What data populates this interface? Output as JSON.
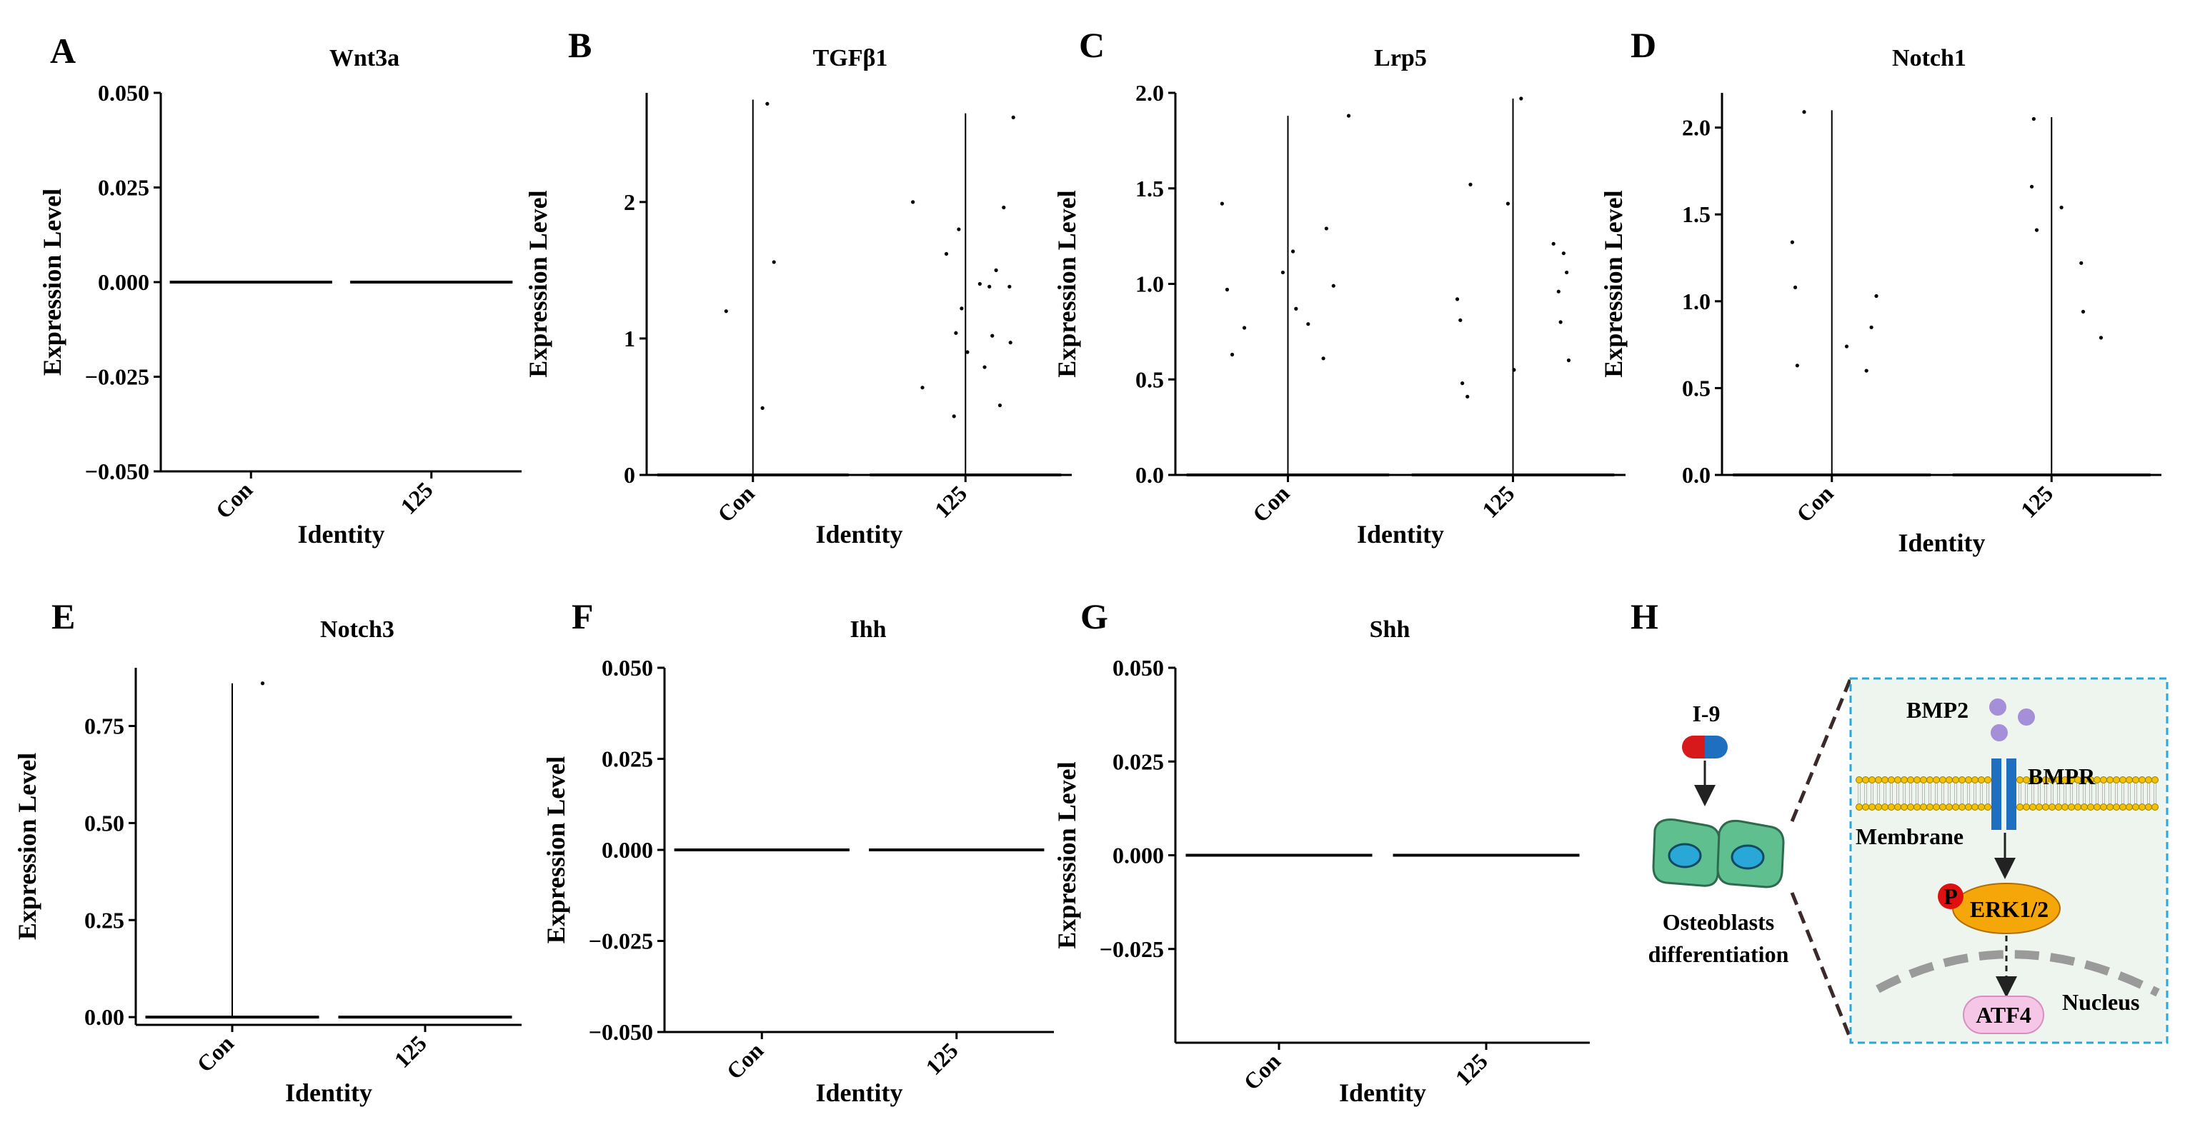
{
  "figure": {
    "panels": [
      {
        "letter": "A",
        "gene": "Wnt3a"
      },
      {
        "letter": "B",
        "gene": "TGFβ1"
      },
      {
        "letter": "C",
        "gene": "Lrp5"
      },
      {
        "letter": "D",
        "gene": "Notch1"
      },
      {
        "letter": "E",
        "gene": "Notch3"
      },
      {
        "letter": "F",
        "gene": "Ihh"
      },
      {
        "letter": "G",
        "gene": "Shh"
      },
      {
        "letter": "H",
        "gene": ""
      }
    ]
  },
  "chart_data": [
    {
      "panel": "A",
      "type": "violin",
      "title": "Wnt3a",
      "xlabel": "Identity",
      "ylabel": "Expression Level",
      "categories": [
        "Con",
        "125"
      ],
      "ylim": [
        -0.05,
        0.05
      ],
      "yticks": [
        -0.05,
        -0.025,
        0,
        0.025,
        0.05
      ],
      "ytick_labels": [
        "−0.050",
        "−0.025",
        "0.000",
        "0.025",
        "0.050"
      ],
      "series": [
        {
          "name": "Con",
          "violin_max": 0,
          "points": []
        },
        {
          "name": "125",
          "violin_max": 0,
          "points": []
        }
      ]
    },
    {
      "panel": "B",
      "type": "violin",
      "title": "TGFβ1",
      "xlabel": "Identity",
      "ylabel": "Expression Level",
      "categories": [
        "Con",
        "125"
      ],
      "ylim": [
        0,
        2.8
      ],
      "yticks": [
        0,
        1,
        2
      ],
      "ytick_labels": [
        "0",
        "1",
        "2"
      ],
      "series": [
        {
          "name": "Con",
          "violin_max": 2.75,
          "points": [
            [
              -0.28,
              1.2
            ],
            [
              0.1,
              0.49
            ],
            [
              0.22,
              1.56
            ],
            [
              0.15,
              2.72
            ]
          ]
        },
        {
          "name": "125",
          "violin_max": 2.65,
          "points": [
            [
              -0.55,
              2.0
            ],
            [
              -0.45,
              0.64
            ],
            [
              -0.2,
              1.62
            ],
            [
              -0.12,
              0.43
            ],
            [
              -0.1,
              1.04
            ],
            [
              -0.07,
              1.8
            ],
            [
              -0.04,
              1.22
            ],
            [
              0.02,
              0.9
            ],
            [
              0.15,
              1.4
            ],
            [
              0.2,
              0.79
            ],
            [
              0.25,
              1.38
            ],
            [
              0.28,
              1.02
            ],
            [
              0.32,
              1.5
            ],
            [
              0.36,
              0.51
            ],
            [
              0.4,
              1.96
            ],
            [
              0.46,
              1.38
            ],
            [
              0.47,
              0.97
            ],
            [
              0.5,
              2.62
            ]
          ]
        }
      ]
    },
    {
      "panel": "C",
      "type": "violin",
      "title": "Lrp5",
      "xlabel": "Identity",
      "ylabel": "Expression Level",
      "categories": [
        "Con",
        "125"
      ],
      "ylim": [
        0,
        2.0
      ],
      "yticks": [
        0,
        0.5,
        1,
        1.5,
        2
      ],
      "ytick_labels": [
        "0.0",
        "0.5",
        "1.0",
        "1.5",
        "2.0"
      ],
      "series": [
        {
          "name": "Con",
          "violin_max": 1.88,
          "points": [
            [
              -0.65,
              1.42
            ],
            [
              -0.6,
              0.97
            ],
            [
              -0.55,
              0.63
            ],
            [
              -0.43,
              0.77
            ],
            [
              -0.05,
              1.06
            ],
            [
              0.05,
              1.17
            ],
            [
              0.08,
              0.87
            ],
            [
              0.2,
              0.79
            ],
            [
              0.35,
              0.61
            ],
            [
              0.38,
              1.29
            ],
            [
              0.45,
              0.99
            ],
            [
              0.6,
              1.88
            ]
          ]
        },
        {
          "name": "125",
          "violin_max": 1.97,
          "points": [
            [
              -0.55,
              0.92
            ],
            [
              -0.52,
              0.81
            ],
            [
              -0.5,
              0.48
            ],
            [
              -0.45,
              0.41
            ],
            [
              -0.42,
              1.52
            ],
            [
              -0.05,
              1.42
            ],
            [
              0.01,
              0.55
            ],
            [
              0.08,
              1.97
            ],
            [
              0.4,
              1.21
            ],
            [
              0.45,
              0.96
            ],
            [
              0.47,
              0.8
            ],
            [
              0.5,
              1.16
            ],
            [
              0.53,
              1.06
            ],
            [
              0.55,
              0.6
            ]
          ]
        }
      ]
    },
    {
      "panel": "D",
      "type": "violin",
      "title": "Notch1",
      "xlabel": "Identity",
      "ylabel": "Expression Level",
      "categories": [
        "Con",
        "125"
      ],
      "ylim": [
        0,
        2.2
      ],
      "yticks": [
        0,
        0.5,
        1,
        1.5,
        2
      ],
      "ytick_labels": [
        "0.0",
        "0.5",
        "1.0",
        "1.5",
        "2.0"
      ],
      "series": [
        {
          "name": "Con",
          "violin_max": 2.1,
          "points": [
            [
              -0.4,
              1.34
            ],
            [
              -0.37,
              1.08
            ],
            [
              -0.35,
              0.63
            ],
            [
              -0.28,
              2.09
            ],
            [
              0.15,
              0.74
            ],
            [
              0.35,
              0.6
            ],
            [
              0.4,
              0.85
            ],
            [
              0.45,
              1.03
            ]
          ]
        },
        {
          "name": "125",
          "violin_max": 2.06,
          "points": [
            [
              -0.2,
              1.66
            ],
            [
              -0.15,
              1.41
            ],
            [
              -0.18,
              2.05
            ],
            [
              0.1,
              1.54
            ],
            [
              0.3,
              1.22
            ],
            [
              0.32,
              0.94
            ],
            [
              0.5,
              0.79
            ]
          ]
        }
      ]
    },
    {
      "panel": "E",
      "type": "violin",
      "title": "Notch3",
      "xlabel": "Identity",
      "ylabel": "Expression Level",
      "categories": [
        "Con",
        "125"
      ],
      "ylim": [
        -0.02,
        0.9
      ],
      "yticks": [
        0,
        0.25,
        0.5,
        0.75
      ],
      "ytick_labels": [
        "0.00",
        "0.25",
        "0.50",
        "0.75"
      ],
      "series": [
        {
          "name": "Con",
          "violin_max": 0.86,
          "points": [
            [
              0.35,
              0.86
            ]
          ]
        },
        {
          "name": "125",
          "violin_max": 0,
          "points": []
        }
      ]
    },
    {
      "panel": "F",
      "type": "violin",
      "title": "Ihh",
      "xlabel": "Identity",
      "ylabel": "Expression Level",
      "categories": [
        "Con",
        "125"
      ],
      "ylim": [
        -0.05,
        0.05
      ],
      "yticks": [
        -0.05,
        -0.025,
        0,
        0.025,
        0.05
      ],
      "ytick_labels": [
        "−0.050",
        "−0.025",
        "0.000",
        "0.025",
        "0.050"
      ],
      "series": [
        {
          "name": "Con",
          "violin_max": 0,
          "points": []
        },
        {
          "name": "125",
          "violin_max": 0,
          "points": []
        }
      ]
    },
    {
      "panel": "G",
      "type": "violin",
      "title": "Shh",
      "xlabel": "Identity",
      "ylabel": "Expression Level",
      "categories": [
        "Con",
        "125"
      ],
      "ylim": [
        -0.05,
        0.05
      ],
      "yticks": [
        -0.025,
        0,
        0.025,
        0.05
      ],
      "ytick_labels": [
        "−0.025",
        "0.000",
        "0.025",
        "0.050"
      ],
      "series": [
        {
          "name": "Con",
          "violin_max": 0,
          "points": []
        },
        {
          "name": "125",
          "violin_max": 0,
          "points": []
        }
      ]
    }
  ],
  "schematic": {
    "inhibitor": "I-9",
    "cell_label_line1": "Osteoblasts",
    "cell_label_line2": "differentiation",
    "ligand": "BMP2",
    "receptor": "BMPR",
    "membrane": "Membrane",
    "phospho": "P",
    "kinase": "ERK1/2",
    "tf": "ATF4",
    "nucleus": "Nucleus"
  },
  "colors": {
    "text": "#000000",
    "dot": "#000000",
    "inhibitor_red": "#d7191c",
    "inhibitor_blue": "#1f6fc0",
    "cell_green": "#5fbf8f",
    "nucleus_blue": "#29a8d8",
    "bmp2_purple": "#a58fd8",
    "bmpr_blue": "#1f6fc0",
    "membrane_yellow": "#f2c200",
    "erk_orange": "#f5a70a",
    "p_red": "#e01010",
    "atf4_pink": "#f6c6e6",
    "inset_bg": "#eef5ee",
    "inset_border": "#29a8d8",
    "nucleus_arc": "#9a9a9a"
  }
}
